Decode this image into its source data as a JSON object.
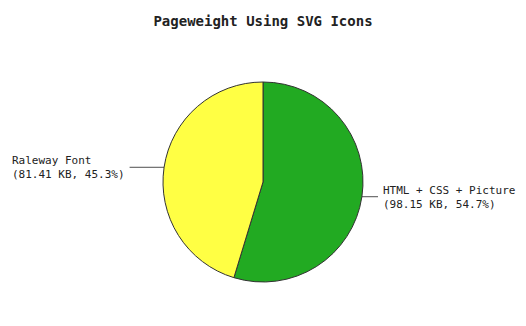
{
  "chart_data": {
    "type": "pie",
    "title": "Pageweight Using SVG Icons",
    "values": [
      54.7,
      45.3
    ],
    "colors": [
      "#22aa22",
      "#ffff44"
    ],
    "annotations": [
      "HTML + CSS + Picture\n(98.15 KB, 54.7%)",
      "Raleway Font\n(81.41 KB, 45.3%)"
    ]
  }
}
